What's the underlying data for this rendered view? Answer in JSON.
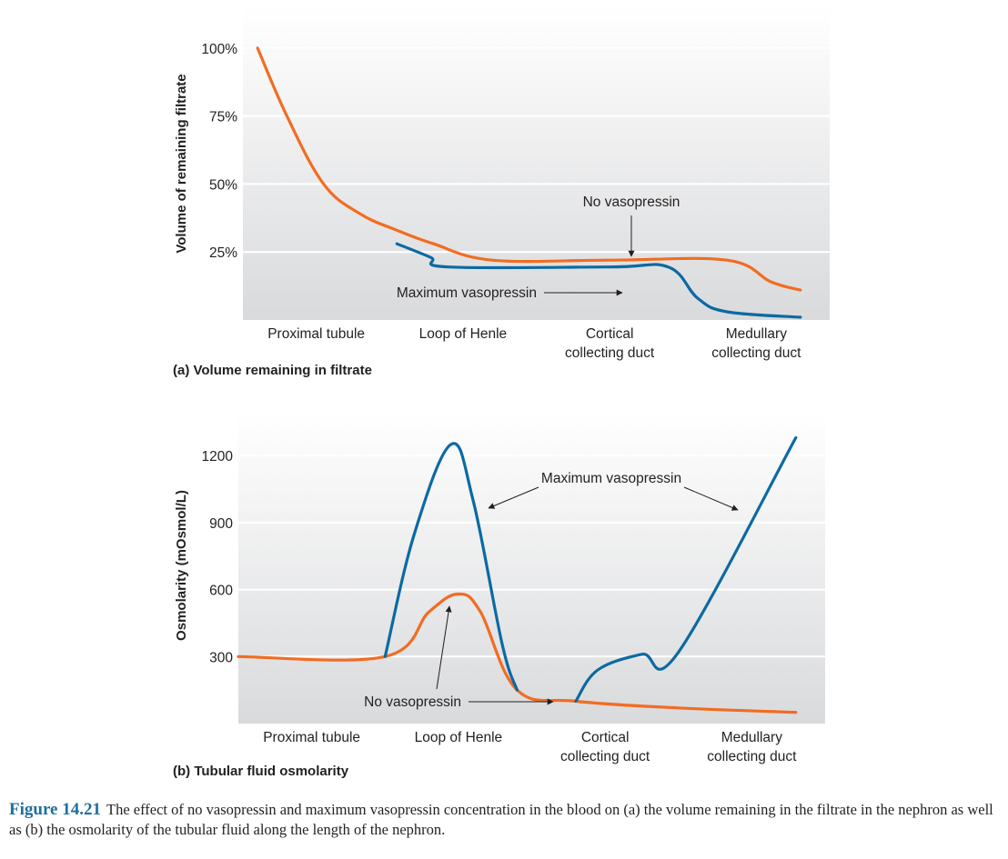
{
  "chart_data": [
    {
      "type": "line",
      "panel_label": "(a) Volume remaining in filtrate",
      "ylabel": "Volume of remaining filtrate",
      "y_ticks": [
        "100%",
        "75%",
        "50%",
        "25%"
      ],
      "y_tick_values": [
        100,
        75,
        50,
        25
      ],
      "ylim": [
        0,
        115
      ],
      "xlim": [
        0,
        4
      ],
      "x_categories": [
        {
          "lines": [
            "Proximal tubule"
          ],
          "pos": 0.5
        },
        {
          "lines": [
            "Loop of Henle"
          ],
          "pos": 1.5
        },
        {
          "lines": [
            "Cortical",
            "collecting duct"
          ],
          "pos": 2.5
        },
        {
          "lines": [
            "Medullary",
            "collecting duct"
          ],
          "pos": 3.5
        }
      ],
      "grid": true,
      "series": [
        {
          "name": "No vasopressin",
          "color": "#f26c21",
          "x": [
            0.1,
            0.3,
            0.55,
            0.8,
            1.05,
            1.3,
            1.7,
            2.5,
            3.3,
            3.6,
            3.8
          ],
          "y": [
            100,
            75,
            50,
            39,
            33,
            28,
            22,
            22,
            22,
            14,
            11
          ]
        },
        {
          "name": "Maximum vasopressin",
          "color": "#0b6aa2",
          "x": [
            1.05,
            1.28,
            1.4,
            2.5,
            2.9,
            3.1,
            3.3,
            3.8
          ],
          "y": [
            28,
            23,
            19.5,
            19.5,
            19.5,
            8,
            3,
            1
          ]
        }
      ],
      "annotations": [
        {
          "text": "No vasopressin",
          "target_series": "No vasopressin"
        },
        {
          "text": "Maximum vasopressin",
          "target_series": "Maximum vasopressin"
        }
      ]
    },
    {
      "type": "line",
      "panel_label": "(b) Tubular fluid osmolarity",
      "ylabel": "Osmolarity (mOsmol/L)",
      "y_ticks": [
        "1200",
        "900",
        "600",
        "300"
      ],
      "y_tick_values": [
        1200,
        900,
        600,
        300
      ],
      "ylim": [
        0,
        1400
      ],
      "xlim": [
        0,
        4
      ],
      "x_categories": [
        {
          "lines": [
            "Proximal tubule"
          ],
          "pos": 0.5
        },
        {
          "lines": [
            "Loop of Henle"
          ],
          "pos": 1.5
        },
        {
          "lines": [
            "Cortical",
            "collecting duct"
          ],
          "pos": 2.5
        },
        {
          "lines": [
            "Medullary",
            "collecting duct"
          ],
          "pos": 3.5
        }
      ],
      "grid": true,
      "series": [
        {
          "name": "No vasopressin",
          "color": "#f26c21",
          "x": [
            0,
            1.0,
            1.3,
            1.5,
            1.65,
            1.9,
            2.3,
            3.0,
            3.8
          ],
          "y": [
            300,
            300,
            500,
            580,
            500,
            150,
            100,
            70,
            50
          ]
        },
        {
          "name": "Maximum vasopressin",
          "color": "#0b6aa2",
          "x": [
            1.0,
            1.2,
            1.45,
            1.6,
            1.8,
            1.9
          ],
          "y": [
            300,
            850,
            1250,
            1000,
            350,
            150
          ]
        },
        {
          "name": "Maximum vasopressin",
          "color": "#0b6aa2",
          "x": [
            2.3,
            2.45,
            2.75,
            3.0,
            3.8
          ],
          "y": [
            100,
            240,
            310,
            320,
            1280
          ]
        }
      ],
      "annotations": [
        {
          "text": "Maximum vasopressin",
          "target_series": "Maximum vasopressin"
        },
        {
          "text": "No vasopressin",
          "target_series": "No vasopressin"
        }
      ]
    }
  ],
  "caption": {
    "figure_number": "Figure 14.21",
    "text": "The effect of no vasopressin and maximum vasopressin concentration in the blood on (a) the volume remaining in the filtrate in the nephron as well as (b) the osmolarity of the tubular fluid along the length of the nephron."
  }
}
